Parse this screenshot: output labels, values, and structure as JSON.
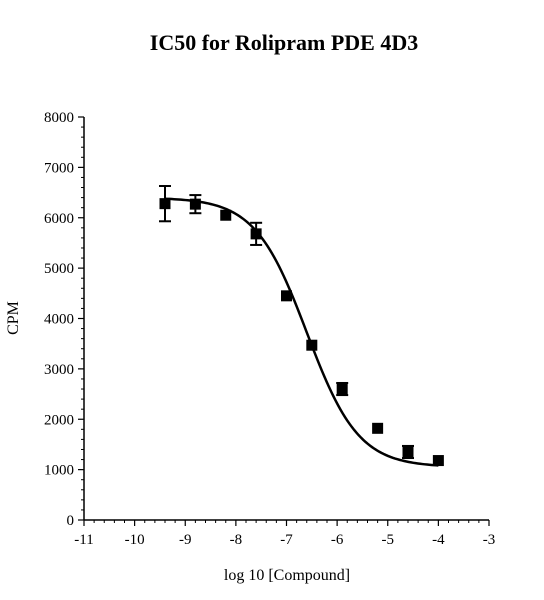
{
  "chart_data": {
    "type": "scatter",
    "title": "IC50 for Rolipram PDE 4D3",
    "xlabel": "log 10 [Compound]",
    "ylabel": "CPM",
    "xlim": [
      -11,
      -3
    ],
    "ylim": [
      0,
      8000
    ],
    "x_ticks": [
      "-11",
      "-10",
      "-9",
      "-8",
      "-7",
      "-6",
      "-5",
      "-4",
      "-3"
    ],
    "y_ticks": [
      "0",
      "1000",
      "2000",
      "3000",
      "4000",
      "5000",
      "6000",
      "7000",
      "8000"
    ],
    "grid": false,
    "legend": "none",
    "series": [
      {
        "x": [
          -9.4,
          -8.8,
          -8.2,
          -7.6,
          -7.0,
          -6.5,
          -5.9,
          -5.2,
          -4.6,
          -4.0
        ],
        "y": [
          6280,
          6270,
          6050,
          5680,
          4450,
          3470,
          2600,
          1820,
          1350,
          1180
        ],
        "error": [
          350,
          180,
          0,
          220,
          0,
          0,
          120,
          0,
          120,
          0
        ],
        "marker": "square",
        "color": "#000000"
      }
    ],
    "fit_curve": {
      "type": "four-parameter-logistic",
      "top": 6400,
      "bottom": 1050,
      "log_ic50": -6.6,
      "hill_slope": 0.85,
      "x_range": [
        -9.4,
        -4.0
      ]
    }
  }
}
